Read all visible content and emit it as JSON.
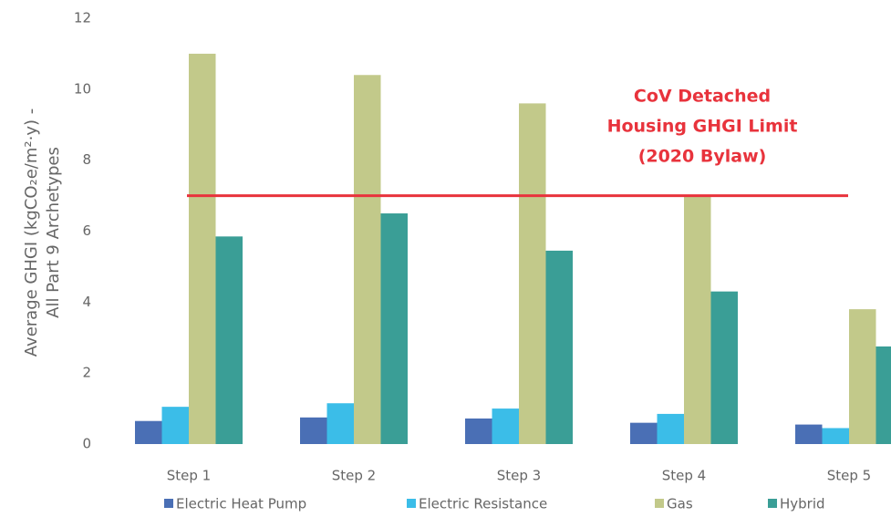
{
  "chart_data": {
    "type": "bar",
    "y_axis_label": [
      "Average GHGI (kgCO₂e/m²·y) -",
      "All Part 9 Archetypes"
    ],
    "categories": [
      "Step 1",
      "Step 2",
      "Step 3",
      "Step 4",
      "Step 5"
    ],
    "series": [
      {
        "name": "Electric Heat Pump",
        "color": "#4a6fb5",
        "values": [
          0.65,
          0.75,
          0.72,
          0.6,
          0.55
        ]
      },
      {
        "name": "Electric Resistance",
        "color": "#3bbde8",
        "values": [
          1.05,
          1.15,
          1.0,
          0.85,
          0.45
        ]
      },
      {
        "name": "Gas",
        "color": "#c2c98a",
        "values": [
          11.0,
          10.4,
          9.6,
          7.0,
          3.8
        ]
      },
      {
        "name": "Hybrid",
        "color": "#3a9e96",
        "values": [
          5.85,
          6.5,
          5.45,
          4.3,
          2.75
        ]
      }
    ],
    "ylim": [
      0,
      12
    ],
    "yticks": [
      0,
      2,
      4,
      6,
      8,
      10,
      12
    ],
    "grid": false,
    "reference_line": {
      "value": 7,
      "color": "#e8333c",
      "label": [
        "CoV Detached",
        "Housing GHGI Limit",
        "(2020 Bylaw)"
      ]
    },
    "legend": "bottom"
  }
}
